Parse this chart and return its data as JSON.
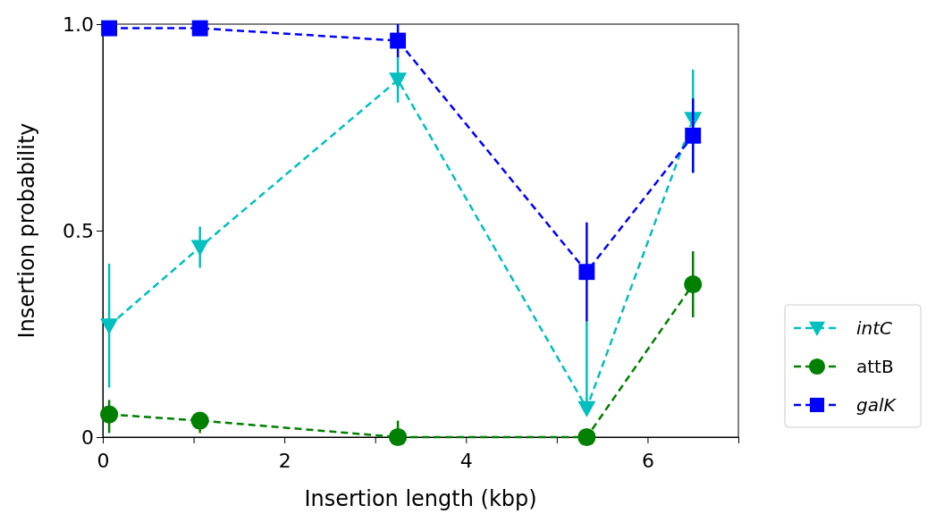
{
  "chart_data": {
    "type": "line",
    "xlabel": "Insertion length (kbp)",
    "ylabel": "Insertion probability",
    "xlim": [
      0,
      7
    ],
    "xticks": [
      0,
      {
        "value": 1,
        "label": null
      },
      2,
      {
        "value": 3,
        "label": null
      },
      4,
      {
        "value": 5,
        "label": null
      },
      6,
      {
        "value": 7,
        "label": null
      }
    ],
    "ylim": [
      0,
      1
    ],
    "yticks": [
      0,
      0.5,
      {
        "value": 1,
        "label": "1.0"
      }
    ],
    "legend": "right",
    "line_style": "dashed",
    "grid": false,
    "series": [
      {
        "name": "intC",
        "color": "#00bfbf",
        "marker": "triangle",
        "x": [
          0.07,
          1.07,
          3.25,
          5.33,
          6.5
        ],
        "values": [
          0.27,
          0.46,
          0.865,
          0.07,
          0.77
        ],
        "errors": [
          [
            0.12,
            0.42
          ],
          [
            0.41,
            0.51
          ],
          [
            0.81,
            0.92
          ],
          [
            0.07,
            0.28
          ],
          [
            0.64,
            0.89
          ]
        ]
      },
      {
        "name": "attB",
        "color": "#008000",
        "marker": "circle",
        "x": [
          0.07,
          1.07,
          3.25,
          5.33,
          6.5
        ],
        "values": [
          0.055,
          0.04,
          0.0,
          0.0,
          0.37
        ],
        "errors": [
          [
            0.01,
            0.09
          ],
          [
            0.01,
            0.06
          ],
          [
            0,
            0.04
          ],
          null,
          [
            0.29,
            0.45
          ]
        ]
      },
      {
        "name": "galK",
        "color": "#0000ff",
        "marker": "square",
        "x": [
          0.07,
          1.07,
          3.25,
          5.33,
          6.5
        ],
        "values": [
          0.99,
          0.99,
          0.96,
          0.4,
          0.73
        ],
        "errors": [
          null,
          null,
          [
            0.92,
            1.0
          ],
          [
            0.28,
            0.52
          ],
          [
            0.64,
            0.82
          ]
        ]
      }
    ]
  }
}
